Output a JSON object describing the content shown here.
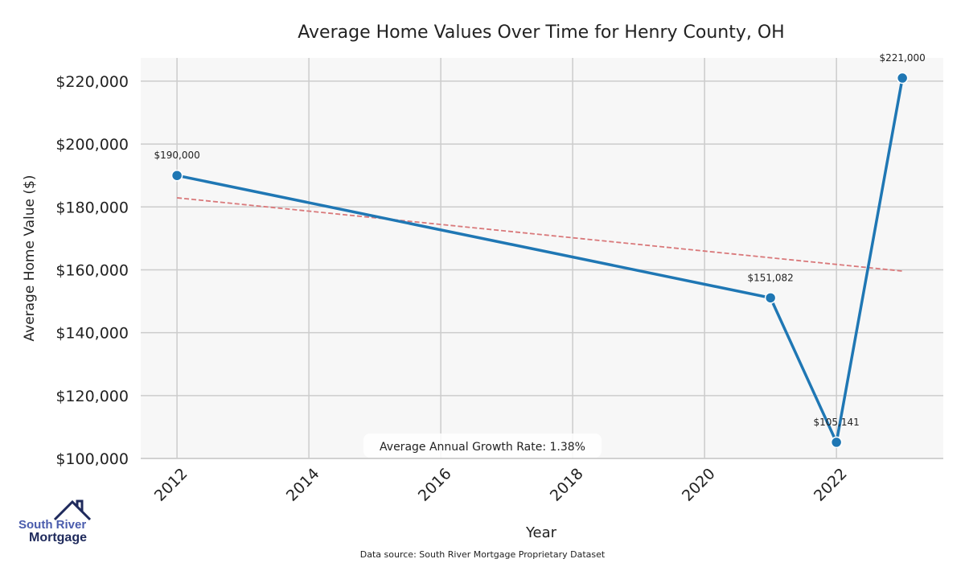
{
  "chart_data": {
    "type": "line",
    "title": "Average Home Values Over Time for Henry County, OH",
    "xlabel": "Year",
    "ylabel": "Average Home Value ($)",
    "x_ticks": [
      2012,
      2014,
      2016,
      2018,
      2020,
      2022
    ],
    "y_ticks": [
      100000,
      120000,
      140000,
      160000,
      180000,
      200000,
      220000
    ],
    "y_tick_labels": [
      "$100,000",
      "$120,000",
      "$140,000",
      "$160,000",
      "$180,000",
      "$200,000",
      "$220,000"
    ],
    "xlim": [
      2011.45,
      2023.62
    ],
    "ylim": [
      100000,
      227400
    ],
    "grid": true,
    "series": [
      {
        "x": [
          2012,
          2021,
          2022,
          2023
        ],
        "y": [
          190000,
          151082,
          105141,
          221000
        ],
        "labels": [
          "$190,000",
          "$151,082",
          "$105,141",
          "$221,000"
        ],
        "color": "#1f77b4"
      }
    ],
    "trendline": {
      "x": [
        2012,
        2023
      ],
      "y": [
        182900,
        159600
      ],
      "color": "#d9787a",
      "style": "dashed"
    },
    "annotation": "Average Annual Growth Rate: 1.38%",
    "source": "Data source: South River Mortgage Proprietary Dataset"
  },
  "logo": {
    "line1": "South River",
    "line2": "Mortgage"
  }
}
